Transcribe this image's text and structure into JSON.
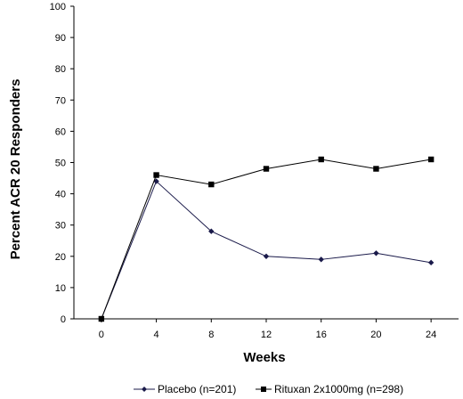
{
  "chart_data": {
    "type": "line",
    "xlabel": "Weeks",
    "ylabel": "Percent ACR 20 Responders",
    "x": [
      0,
      4,
      8,
      12,
      16,
      20,
      24
    ],
    "x_ticks": [
      "0",
      "4",
      "8",
      "12",
      "16",
      "20",
      "24"
    ],
    "xlim": [
      -2,
      26
    ],
    "y_ticks": [
      "0",
      "10",
      "20",
      "30",
      "40",
      "50",
      "60",
      "70",
      "80",
      "90",
      "100"
    ],
    "ylim": [
      0,
      100
    ],
    "grid": false,
    "legend_position": "bottom",
    "series": [
      {
        "name": "Placebo (n=201)",
        "marker": "diamond",
        "color": "#1a1a4a",
        "values": [
          0,
          44,
          28,
          20,
          19,
          21,
          18
        ]
      },
      {
        "name": "Rituxan 2x1000mg (n=298)",
        "marker": "square",
        "color": "#000000",
        "values": [
          0,
          46,
          43,
          48,
          51,
          48,
          51
        ]
      }
    ]
  }
}
